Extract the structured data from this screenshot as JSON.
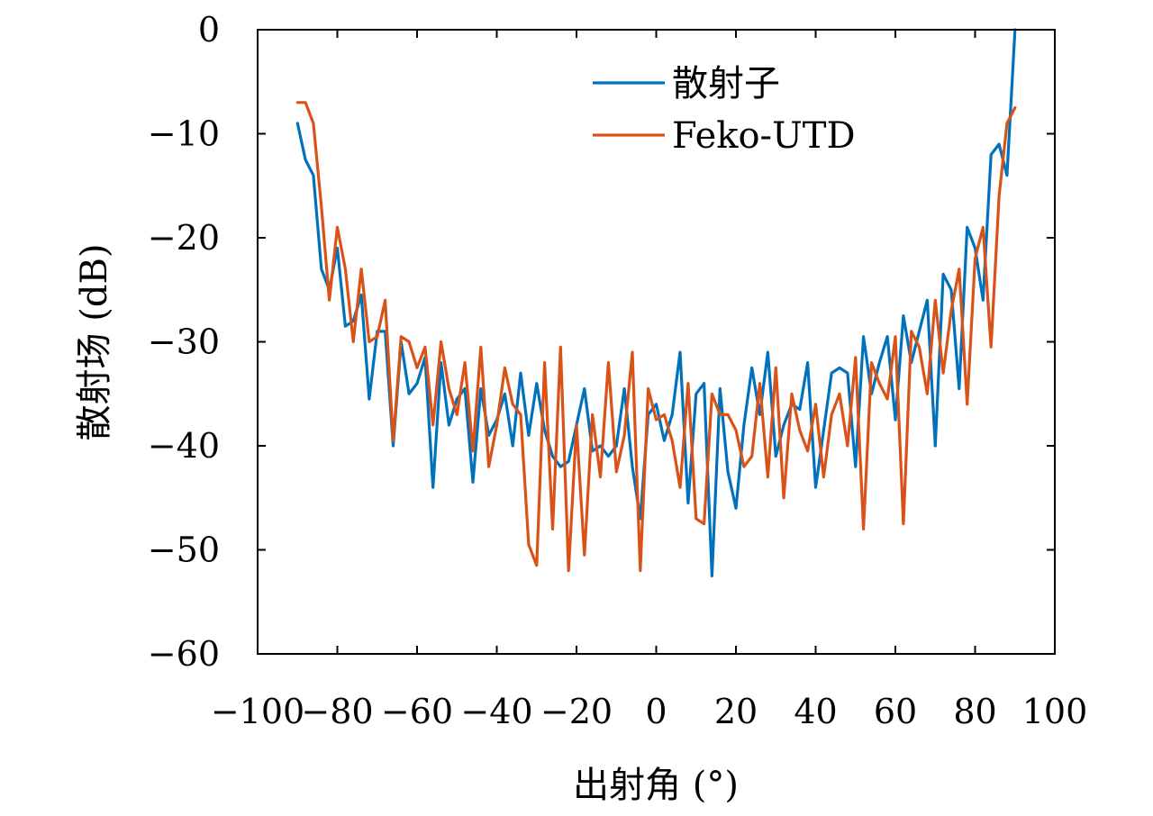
{
  "chart_data": {
    "type": "line",
    "xlabel": "出射角 (°)",
    "ylabel": "散射场 (dB)",
    "xlim": [
      -100,
      100
    ],
    "ylim": [
      -60,
      0
    ],
    "xticks": [
      -100,
      -80,
      -60,
      -40,
      -20,
      0,
      20,
      40,
      60,
      80,
      100
    ],
    "yticks": [
      0,
      -10,
      -20,
      -30,
      -40,
      -50,
      -60
    ],
    "xtick_labels": [
      "−100",
      "−80",
      "−60",
      "−40",
      "−20",
      "0",
      "20",
      "40",
      "60",
      "80",
      "100"
    ],
    "ytick_labels": [
      "0",
      "−10",
      "−20",
      "−30",
      "−40",
      "−50",
      "−60"
    ],
    "grid": false,
    "legend_position": "top-right",
    "series": [
      {
        "name": "散射子",
        "color": "#0072BD",
        "x": [
          -90,
          -88,
          -86,
          -84,
          -82,
          -80,
          -78,
          -76,
          -74,
          -72,
          -70,
          -68,
          -66,
          -64,
          -62,
          -60,
          -58,
          -56,
          -54,
          -52,
          -50,
          -48,
          -46,
          -44,
          -42,
          -40,
          -38,
          -36,
          -34,
          -32,
          -30,
          -28,
          -26,
          -24,
          -22,
          -20,
          -18,
          -16,
          -14,
          -12,
          -10,
          -8,
          -6,
          -4,
          -2,
          0,
          2,
          4,
          6,
          8,
          10,
          12,
          14,
          16,
          18,
          20,
          22,
          24,
          26,
          28,
          30,
          32,
          34,
          36,
          38,
          40,
          42,
          44,
          46,
          48,
          50,
          52,
          54,
          56,
          58,
          60,
          62,
          64,
          66,
          68,
          70,
          72,
          74,
          76,
          78,
          80,
          82,
          84,
          86,
          88,
          90
        ],
        "y": [
          -9,
          -12.5,
          -14,
          -23,
          -25,
          -21,
          -28.5,
          -28,
          -25.5,
          -35.5,
          -29,
          -29,
          -40,
          -30,
          -35,
          -34,
          -31.5,
          -44,
          -32,
          -38,
          -35.5,
          -34.5,
          -43.5,
          -34.5,
          -39,
          -37.5,
          -35,
          -40,
          -33,
          -39,
          -34,
          -38.5,
          -41,
          -42,
          -41.5,
          -38,
          -34.5,
          -40.5,
          -40,
          -41,
          -40,
          -34.5,
          -42,
          -47,
          -37,
          -36,
          -39.5,
          -37,
          -31,
          -45.5,
          -35,
          -34,
          -52.5,
          -34.5,
          -42.5,
          -46,
          -38,
          -32.5,
          -37,
          -31,
          -41,
          -38,
          -36,
          -36.5,
          -32,
          -44,
          -38.5,
          -33,
          -32.5,
          -33,
          -42,
          -29.5,
          -35,
          -32,
          -29.5,
          -37.5,
          -27.5,
          -32,
          -29,
          -26,
          -40,
          -23.5,
          -25,
          -34.5,
          -19,
          -21,
          -26,
          -12,
          -11,
          -14,
          0
        ]
      },
      {
        "name": "Feko-UTD",
        "color": "#D95319",
        "x": [
          -90,
          -88,
          -86,
          -84,
          -82,
          -80,
          -78,
          -76,
          -74,
          -72,
          -70,
          -68,
          -66,
          -64,
          -62,
          -60,
          -58,
          -56,
          -54,
          -52,
          -50,
          -48,
          -46,
          -44,
          -42,
          -40,
          -38,
          -36,
          -34,
          -32,
          -30,
          -28,
          -26,
          -24,
          -22,
          -20,
          -18,
          -16,
          -14,
          -12,
          -10,
          -8,
          -6,
          -4,
          -2,
          0,
          2,
          4,
          6,
          8,
          10,
          12,
          14,
          16,
          18,
          20,
          22,
          24,
          26,
          28,
          30,
          32,
          34,
          36,
          38,
          40,
          42,
          44,
          46,
          48,
          50,
          52,
          54,
          56,
          58,
          60,
          62,
          64,
          66,
          68,
          70,
          72,
          74,
          76,
          78,
          80,
          82,
          84,
          86,
          88,
          90
        ],
        "y": [
          -7,
          -7,
          -9,
          -17,
          -26,
          -19,
          -23,
          -30,
          -23,
          -30,
          -29.5,
          -26,
          -39.5,
          -29.5,
          -30,
          -32.5,
          -30.5,
          -38,
          -30,
          -34.5,
          -37,
          -32,
          -40.5,
          -30.5,
          -42,
          -38,
          -32.5,
          -36,
          -37,
          -49.5,
          -51.5,
          -32,
          -48,
          -30.5,
          -52,
          -38,
          -50.5,
          -37,
          -43,
          -32,
          -42.5,
          -39,
          -31,
          -52,
          -34.5,
          -37.5,
          -37,
          -39.5,
          -44,
          -34,
          -47,
          -47.5,
          -35,
          -37,
          -37,
          -38.5,
          -42,
          -41,
          -34,
          -43,
          -32.5,
          -45,
          -35,
          -38.5,
          -40.5,
          -36,
          -43,
          -37,
          -35,
          -40,
          -31.5,
          -48,
          -32,
          -34,
          -35.5,
          -29.5,
          -47.5,
          -29,
          -30.5,
          -35,
          -26,
          -33,
          -27,
          -23,
          -36,
          -22,
          -19,
          -30.5,
          -16,
          -9,
          -7.5
        ]
      }
    ]
  }
}
